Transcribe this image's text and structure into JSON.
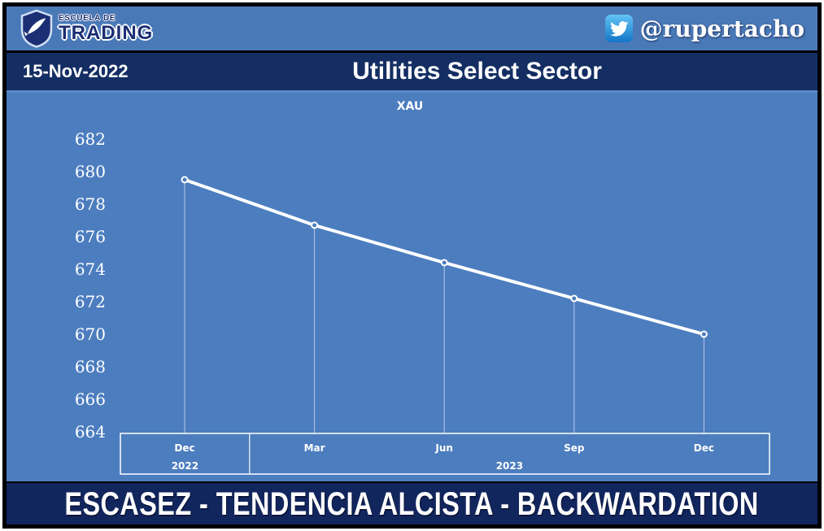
{
  "header": {
    "logo": {
      "line1": "ESCUELA DE",
      "line2": "TRADING",
      "icon": "shield-fish-logo"
    },
    "twitter": {
      "icon": "twitter-bird-icon",
      "handle": "@rupertacho"
    }
  },
  "title_bar": {
    "date": "15-Nov-2022",
    "title": "Utilities Select Sector"
  },
  "footer": {
    "banner": "ESCASEZ - TENDENCIA ALCISTA - BACKWARDATION"
  },
  "colors": {
    "topbar_blue": "#4a79b7",
    "navy": "#142e63",
    "footer_navy": "#12265e",
    "chart_background": "#4c7dbf",
    "line_white": "#ffffff",
    "border_black": "#000000"
  },
  "chart_data": {
    "type": "line",
    "title": "XAU",
    "categories": [
      "Dec",
      "Mar",
      "Jun",
      "Sep",
      "Dec"
    ],
    "years": [
      {
        "label": "2022",
        "categories": [
          "Dec"
        ]
      },
      {
        "label": "2023",
        "categories": [
          "Mar",
          "Jun",
          "Sep",
          "Dec"
        ]
      }
    ],
    "values": [
      679.5,
      676.7,
      674.4,
      672.2,
      670.0
    ],
    "yticks": [
      682,
      680,
      678,
      676,
      674,
      672,
      670,
      668,
      666,
      664
    ],
    "ylim": [
      663,
      683.5
    ],
    "xlabel": "",
    "ylabel": "",
    "grid": false,
    "legend": false,
    "line_color": "#ffffff",
    "marker": "open-circle",
    "note": "futures curve in backwardation, price declines toward later expiries"
  }
}
